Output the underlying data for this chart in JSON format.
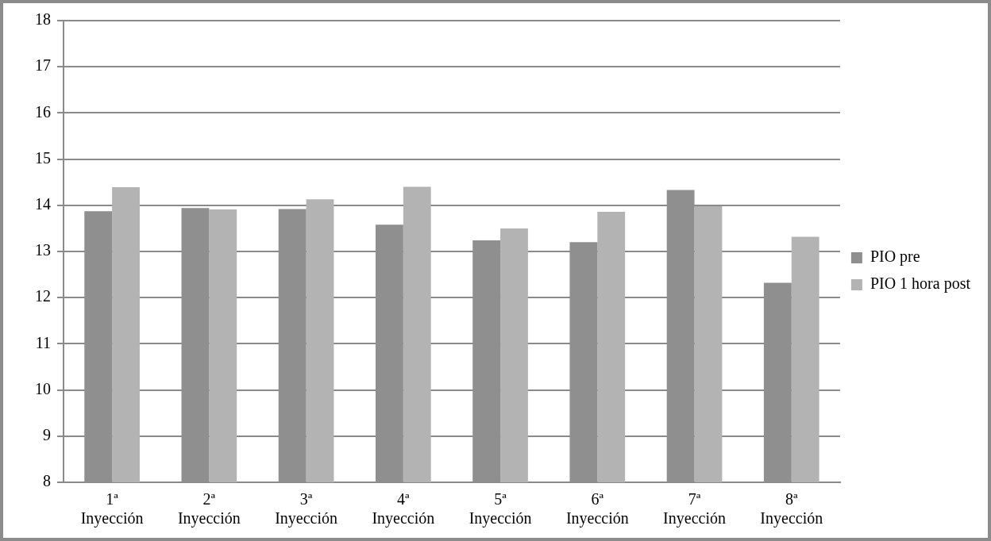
{
  "chart_data": {
    "type": "bar",
    "categories": [
      "1ª Inyección",
      "2ª Inyección",
      "3ª Inyección",
      "4ª Inyección",
      "5ª Inyección",
      "6ª Inyección",
      "7ª Inyección",
      "8ª Inyección"
    ],
    "series": [
      {
        "name": "PIO pre",
        "color": "#8f8f8f",
        "values": [
          13.87,
          13.94,
          13.92,
          13.58,
          13.24,
          13.2,
          14.33,
          12.32
        ]
      },
      {
        "name": "PIO 1 hora post",
        "color": "#b3b3b3",
        "values": [
          14.39,
          13.91,
          14.13,
          14.4,
          13.5,
          13.86,
          13.98,
          13.32
        ]
      }
    ],
    "ylim": [
      8,
      18
    ],
    "yticks": [
      8,
      9,
      10,
      11,
      12,
      13,
      14,
      15,
      16,
      17,
      18
    ],
    "grid": "y",
    "legend": "right"
  }
}
